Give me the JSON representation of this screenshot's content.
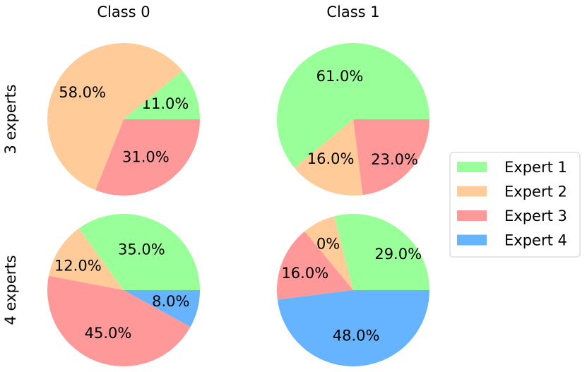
{
  "colors": {
    "Expert 1": "#99ff99",
    "Expert 2": "#ffcc99",
    "Expert 3": "#ff9999",
    "Expert 4": "#66b3ff"
  },
  "column_titles": [
    "Class 0",
    "Class 1"
  ],
  "row_labels": [
    "3 experts",
    "4 experts"
  ],
  "legend": {
    "placement": "right",
    "entries": [
      "Expert 1",
      "Expert 2",
      "Expert 3",
      "Expert 4"
    ]
  },
  "chart_data": [
    {
      "type": "pie",
      "title": "Class 0",
      "row_label": "3 experts",
      "categories": [
        "Expert 1",
        "Expert 2",
        "Expert 3"
      ],
      "values": [
        11.0,
        58.0,
        31.0
      ],
      "labels": [
        "11.0%",
        "58.0%",
        "31.0%"
      ]
    },
    {
      "type": "pie",
      "title": "Class 1",
      "row_label": "3 experts",
      "categories": [
        "Expert 1",
        "Expert 2",
        "Expert 3"
      ],
      "values": [
        61.0,
        16.0,
        23.0
      ],
      "labels": [
        "61.0%",
        "16.0%",
        "23.0%"
      ]
    },
    {
      "type": "pie",
      "title": "Class 0",
      "row_label": "4 experts",
      "categories": [
        "Expert 1",
        "Expert 2",
        "Expert 3",
        "Expert 4"
      ],
      "values": [
        35.0,
        12.0,
        45.0,
        8.0
      ],
      "labels": [
        "35.0%",
        "12.0%",
        "45.0%",
        "8.0%"
      ]
    },
    {
      "type": "pie",
      "title": "Class 1",
      "row_label": "4 experts",
      "categories": [
        "Expert 1",
        "Expert 2",
        "Expert 3",
        "Expert 4"
      ],
      "values": [
        29.0,
        7.0,
        16.0,
        48.0
      ],
      "labels": [
        "29.0%",
        "7.0%",
        "16.0%",
        "48.0%"
      ]
    }
  ]
}
